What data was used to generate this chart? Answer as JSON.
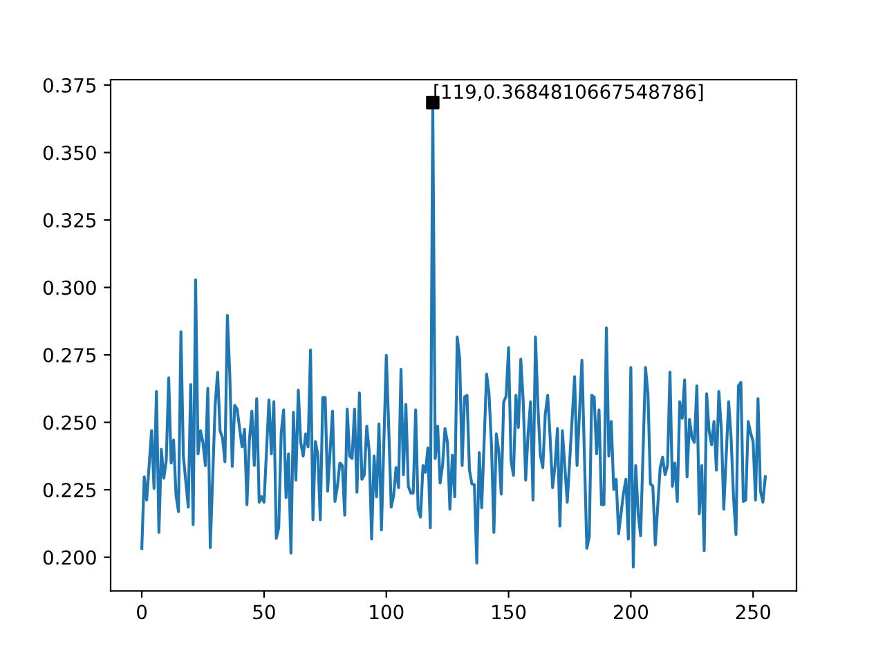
{
  "chart_data": {
    "type": "line",
    "series": [
      {
        "color": "#1f77b4",
        "marker": "none",
        "x": [
          0,
          1,
          2,
          4,
          5,
          6,
          7,
          8,
          9,
          10,
          11,
          12,
          13,
          14,
          15,
          16,
          17,
          19,
          20,
          21,
          22,
          23,
          24,
          25,
          26,
          27,
          28,
          30,
          31,
          32,
          33,
          34,
          35,
          36,
          37,
          38,
          39,
          40,
          41,
          42,
          43,
          44,
          45,
          46,
          47,
          48,
          49,
          50,
          52,
          53,
          54,
          55,
          56,
          57,
          58,
          59,
          60,
          61,
          62,
          63,
          64,
          65,
          66,
          67,
          68,
          69,
          70,
          71,
          72,
          73,
          74,
          75,
          76,
          77,
          78,
          79,
          80,
          81,
          82,
          83,
          84,
          85,
          86,
          87,
          88,
          89,
          90,
          91,
          92,
          93,
          94,
          95,
          96,
          97,
          98,
          99,
          100,
          101,
          102,
          103,
          104,
          105,
          106,
          107,
          108,
          109,
          110,
          111,
          112,
          113,
          114,
          115,
          116,
          117,
          118,
          119,
          120,
          121,
          122,
          123,
          124,
          125,
          126,
          127,
          128,
          129,
          130,
          131,
          132,
          133,
          134,
          135,
          136,
          137,
          138,
          139,
          140,
          141,
          142,
          143,
          144,
          145,
          146,
          147,
          148,
          149,
          150,
          151,
          152,
          153,
          154,
          155,
          156,
          157,
          158,
          159,
          160,
          161,
          162,
          163,
          164,
          165,
          166,
          167,
          168,
          169,
          170,
          171,
          172,
          174,
          177,
          178,
          180,
          182,
          183,
          184,
          185,
          186,
          187,
          188,
          189,
          190,
          191,
          192,
          193,
          194,
          195,
          197,
          198,
          199,
          200,
          201,
          202,
          203,
          204,
          206,
          207,
          208,
          209,
          210,
          212,
          213,
          214,
          215,
          216,
          217,
          218,
          219,
          220,
          221,
          222,
          223,
          224,
          225,
          226,
          227,
          228,
          229,
          230,
          231,
          232,
          233,
          234,
          235,
          236,
          237,
          238,
          240,
          241,
          242,
          243,
          244,
          245,
          246,
          247,
          248,
          249,
          250,
          251,
          252,
          253,
          254,
          255
        ],
        "values": [
          0.2033,
          0.2298,
          0.2212,
          0.2469,
          0.2255,
          0.2614,
          0.2092,
          0.24,
          0.2293,
          0.2358,
          0.2665,
          0.2349,
          0.2434,
          0.2229,
          0.2169,
          0.2836,
          0.2375,
          0.2186,
          0.264,
          0.2121,
          0.3028,
          0.2383,
          0.2469,
          0.2426,
          0.234,
          0.2626,
          0.2036,
          0.2563,
          0.2686,
          0.2469,
          0.2443,
          0.2354,
          0.2896,
          0.2674,
          0.2337,
          0.2563,
          0.2549,
          0.2477,
          0.2409,
          0.2474,
          0.2195,
          0.2434,
          0.2541,
          0.234,
          0.2588,
          0.2204,
          0.2224,
          0.2204,
          0.2583,
          0.2383,
          0.2576,
          0.207,
          0.2109,
          0.246,
          0.2546,
          0.2221,
          0.2383,
          0.2015,
          0.2537,
          0.2286,
          0.2619,
          0.2426,
          0.2375,
          0.2457,
          0.2409,
          0.2768,
          0.2139,
          0.2429,
          0.2378,
          0.2139,
          0.2592,
          0.2592,
          0.2245,
          0.2392,
          0.2541,
          0.2207,
          0.2263,
          0.2349,
          0.234,
          0.2156,
          0.2549,
          0.2375,
          0.2366,
          0.2549,
          0.2241,
          0.2609,
          0.2289,
          0.2306,
          0.2486,
          0.2392,
          0.2067,
          0.2375,
          0.2224,
          0.2494,
          0.2101,
          0.2426,
          0.2748,
          0.2477,
          0.2186,
          0.2229,
          0.2332,
          0.2258,
          0.2696,
          0.2306,
          0.2566,
          0.2263,
          0.2238,
          0.2238,
          0.2546,
          0.2178,
          0.2149,
          0.234,
          0.2315,
          0.2405,
          0.2109,
          0.3684810667548786,
          0.2366,
          0.2486,
          0.2275,
          0.234,
          0.2477,
          0.2426,
          0.2178,
          0.2378,
          0.2224,
          0.2816,
          0.2737,
          0.234,
          0.2594,
          0.26,
          0.2323,
          0.2272,
          0.2269,
          0.1978,
          0.2388,
          0.2183,
          0.2426,
          0.2679,
          0.2606,
          0.2417,
          0.2092,
          0.2457,
          0.2392,
          0.2234,
          0.2576,
          0.2597,
          0.2777,
          0.2358,
          0.2303,
          0.26,
          0.2481,
          0.2734,
          0.2576,
          0.2286,
          0.246,
          0.2576,
          0.2212,
          0.2816,
          0.2559,
          0.2378,
          0.2332,
          0.2529,
          0.26,
          0.2443,
          0.2258,
          0.234,
          0.2477,
          0.2115,
          0.2469,
          0.2204,
          0.2669,
          0.234,
          0.273,
          0.2033,
          0.2075,
          0.26,
          0.2594,
          0.2383,
          0.2546,
          0.2195,
          0.2195,
          0.285,
          0.2375,
          0.2503,
          0.2251,
          0.2289,
          0.2087,
          0.2238,
          0.2289,
          0.2067,
          0.2703,
          0.1964,
          0.234,
          0.2161,
          0.208,
          0.2703,
          0.2606,
          0.2272,
          0.2263,
          0.2046,
          0.2332,
          0.2371,
          0.2306,
          0.234,
          0.2686,
          0.2263,
          0.2349,
          0.2207,
          0.2576,
          0.2515,
          0.2657,
          0.2298,
          0.2511,
          0.2443,
          0.2426,
          0.2635,
          0.2161,
          0.234,
          0.2024,
          0.2606,
          0.2469,
          0.2417,
          0.2503,
          0.2323,
          0.2614,
          0.2477,
          0.2178,
          0.2576,
          0.2443,
          0.2221,
          0.2084,
          0.2635,
          0.2648,
          0.2207,
          0.2212,
          0.2503,
          0.246,
          0.2429,
          0.2212,
          0.2588,
          0.2246,
          0.2204,
          0.2298
        ]
      },
      {
        "type": "scatter",
        "color": "#000000",
        "marker": "square",
        "x": [
          119
        ],
        "values": [
          0.3684810667548786
        ]
      }
    ],
    "annotations": [
      {
        "text": "[119,0.3684810667548786]",
        "x": 119,
        "y": 0.3684810667548786
      }
    ],
    "xlim": [
      -12.75,
      267.75
    ],
    "ylim": [
      0.1875,
      0.377
    ],
    "xticks": [
      0,
      50,
      100,
      150,
      200,
      250
    ],
    "yticks": [
      {
        "value": 0.2,
        "label": "0.200"
      },
      {
        "value": 0.225,
        "label": "0.225"
      },
      {
        "value": 0.25,
        "label": "0.250"
      },
      {
        "value": 0.275,
        "label": "0.275"
      },
      {
        "value": 0.3,
        "label": "0.300"
      },
      {
        "value": 0.325,
        "label": "0.325"
      },
      {
        "value": 0.35,
        "label": "0.350"
      },
      {
        "value": 0.375,
        "label": "0.375"
      }
    ],
    "grid": false,
    "legend": false
  }
}
